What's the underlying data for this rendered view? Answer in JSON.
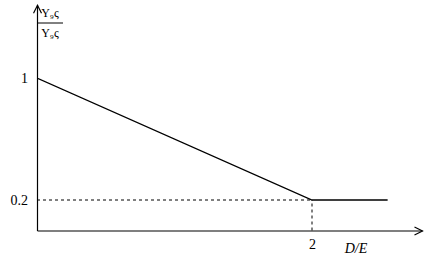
{
  "chart_data": {
    "type": "line",
    "ylabel_numerator": "Y₉ς",
    "ylabel_denominator": "Y₉ς",
    "xlabel": "D/E",
    "x": [
      0,
      2,
      2.55
    ],
    "values": [
      1,
      0.2,
      0.2
    ],
    "color": "#000000",
    "xlim": [
      0,
      2.8
    ],
    "ylim": [
      0,
      1.48
    ],
    "xticks": [
      2
    ],
    "yticks": [
      0.2,
      1
    ],
    "grid": false
  }
}
